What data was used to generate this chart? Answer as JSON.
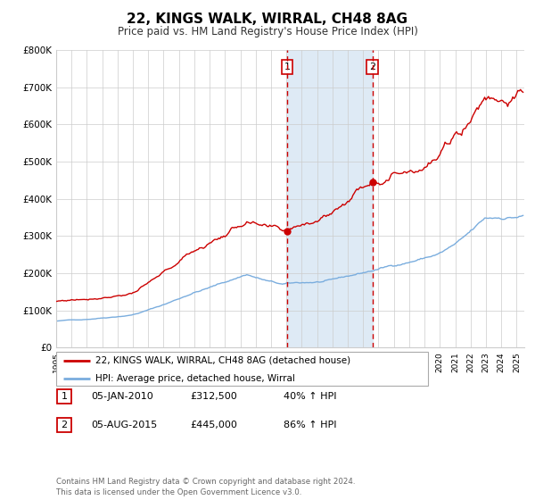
{
  "title": "22, KINGS WALK, WIRRAL, CH48 8AG",
  "subtitle": "Price paid vs. HM Land Registry's House Price Index (HPI)",
  "title_fontsize": 11,
  "subtitle_fontsize": 8.5,
  "ylabel_values": [
    "£0",
    "£100K",
    "£200K",
    "£300K",
    "£400K",
    "£500K",
    "£600K",
    "£700K",
    "£800K"
  ],
  "ylim": [
    0,
    800000
  ],
  "xlim_start": 1995.0,
  "xlim_end": 2025.5,
  "transaction1_date": 2010.04,
  "transaction1_price": 312500,
  "transaction1_label": "1",
  "transaction2_date": 2015.6,
  "transaction2_price": 445000,
  "transaction2_label": "2",
  "transaction1_info": "05-JAN-2010",
  "transaction1_price_str": "£312,500",
  "transaction1_pct": "40% ↑ HPI",
  "transaction2_info": "05-AUG-2015",
  "transaction2_price_str": "£445,000",
  "transaction2_pct": "86% ↑ HPI",
  "legend_line1": "22, KINGS WALK, WIRRAL, CH48 8AG (detached house)",
  "legend_line2": "HPI: Average price, detached house, Wirral",
  "footnote": "Contains HM Land Registry data © Crown copyright and database right 2024.\nThis data is licensed under the Open Government Licence v3.0.",
  "line_color_red": "#cc0000",
  "line_color_blue": "#7aadde",
  "shading_color": "#deeaf5",
  "grid_color": "#cccccc",
  "background_color": "#ffffff",
  "box_color": "#cc0000"
}
